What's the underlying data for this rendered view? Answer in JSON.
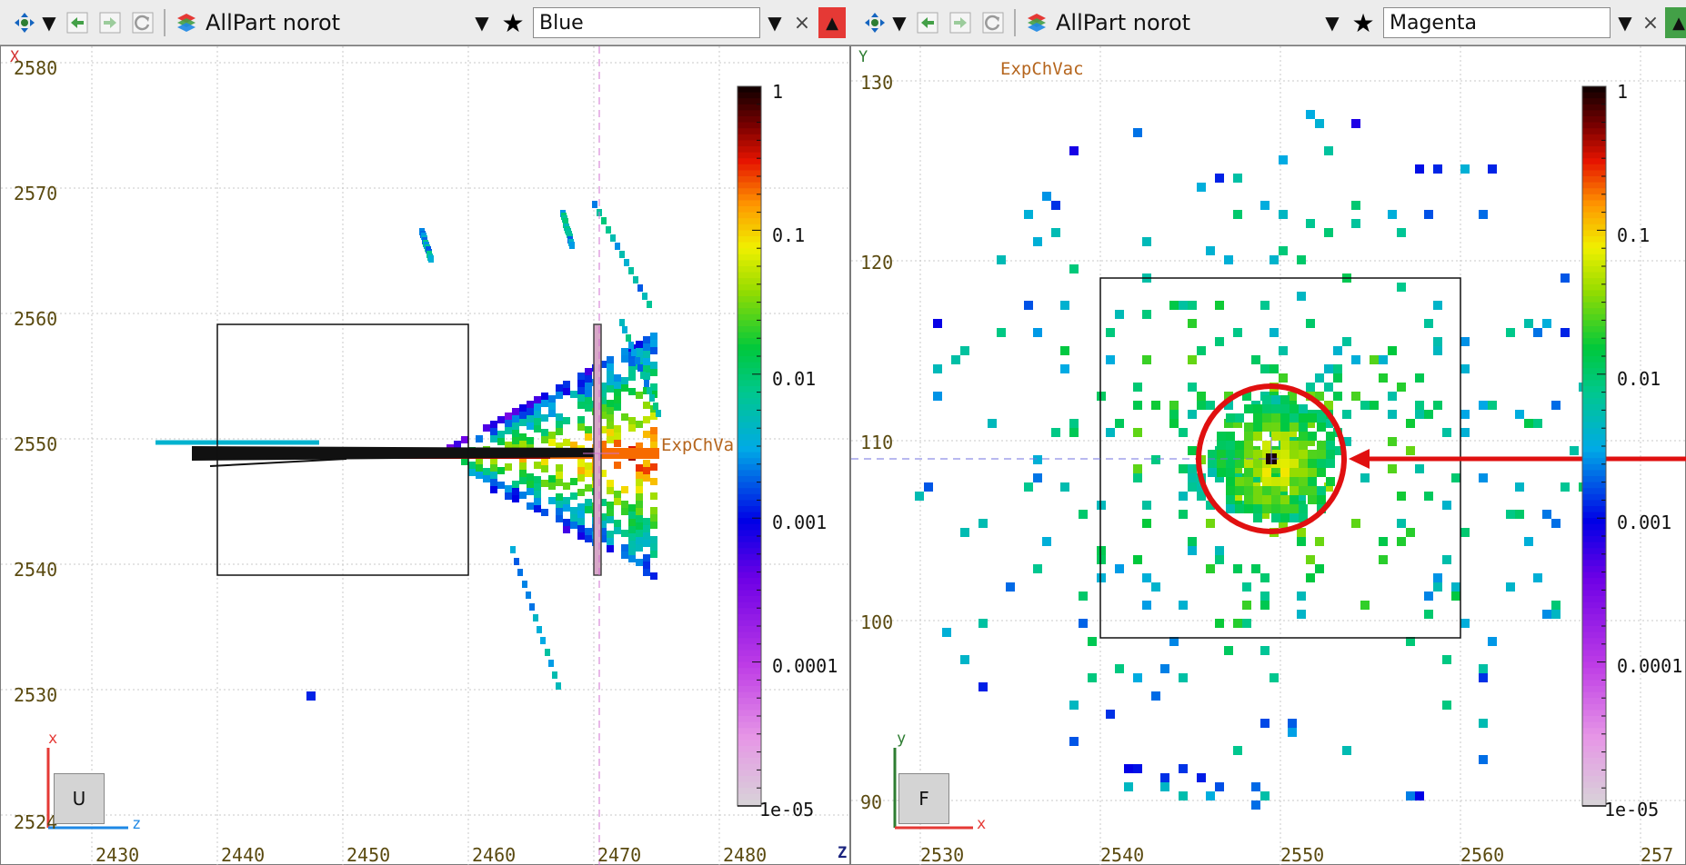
{
  "colors": {
    "accent_red": "#e01010",
    "toolbar_bg": "#ececec",
    "region_label": "#b5651d",
    "tick_label": "#5a4a10"
  },
  "color_scale": {
    "type": "log",
    "min": "1e-05",
    "max": "1",
    "ticks": [
      "1",
      "0.1",
      "0.01",
      "0.001",
      "0.0001",
      "1e-05"
    ]
  },
  "left_view": {
    "toolbar": {
      "layer": "AllPart norot",
      "color": "Blue",
      "icons": [
        "move-icon",
        "back-icon",
        "forward-icon",
        "refresh-icon",
        "layers-icon",
        "star-icon",
        "close-icon",
        "maximize-icon"
      ]
    },
    "vertical_axis_letter": "X",
    "horizontal_axis_letter": "Z",
    "y_ticks": [
      "2580",
      "2570",
      "2560",
      "2550",
      "2540",
      "2530",
      "2524"
    ],
    "x_ticks": [
      "2430",
      "2440",
      "2450",
      "2460",
      "2470",
      "2480"
    ],
    "region_label": "ExpChVa",
    "colorbar_labels": [
      "1",
      "0.1",
      "0.01",
      "0.001",
      "0.0001",
      "1e-05"
    ],
    "view_button": "U",
    "gizmo": {
      "up": "x",
      "right": "z"
    }
  },
  "right_view": {
    "toolbar": {
      "layer": "AllPart norot",
      "color": "Magenta",
      "icons": [
        "move-icon",
        "back-icon",
        "forward-icon",
        "refresh-icon",
        "layers-icon",
        "star-icon",
        "close-icon",
        "maximize-icon"
      ]
    },
    "vertical_axis_letter": "Y",
    "y_ticks": [
      "130",
      "120",
      "110",
      "100",
      "90"
    ],
    "x_ticks": [
      "2530",
      "2540",
      "2550",
      "2560",
      "257"
    ],
    "region_label": "ExpChVac",
    "colorbar_labels": [
      "1",
      "0.1",
      "0.01",
      "0.001",
      "0.0001",
      "1e-05"
    ],
    "view_button": "F",
    "gizmo": {
      "up": "y",
      "right": "x"
    }
  }
}
